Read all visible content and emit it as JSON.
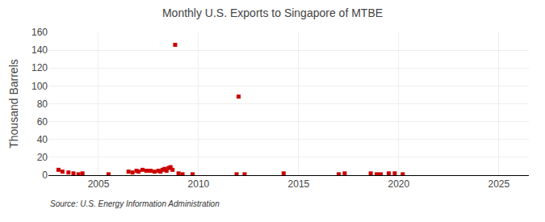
{
  "chart_data": {
    "type": "scatter",
    "title": "Monthly U.S. Exports to Singapore of MTBE",
    "ylabel": "Thousand Barrels",
    "annotations": [
      "Source: U.S. Energy Information Administration"
    ],
    "color": "#cc0000",
    "marker": "square",
    "grid": true,
    "xlim": [
      2002.5,
      2026.5
    ],
    "ylim": [
      0,
      160
    ],
    "xticks": [
      2005,
      2010,
      2015,
      2020,
      2025
    ],
    "yticks": [
      0,
      20,
      40,
      60,
      80,
      100,
      120,
      140,
      160
    ],
    "x": [
      2003.0,
      2003.2,
      2003.5,
      2003.75,
      2004.0,
      2004.2,
      2005.5,
      2006.5,
      2006.7,
      2006.9,
      2007.0,
      2007.2,
      2007.4,
      2007.6,
      2007.8,
      2008.0,
      2008.1,
      2008.2,
      2008.3,
      2008.4,
      2008.5,
      2008.6,
      2008.7,
      2008.83,
      2009.0,
      2009.2,
      2009.7,
      2011.9,
      2012.0,
      2012.3,
      2014.25,
      2017.0,
      2017.3,
      2018.6,
      2018.9,
      2019.1,
      2019.5,
      2019.8,
      2020.2
    ],
    "values": [
      6,
      4,
      3,
      2,
      1,
      2,
      1,
      4,
      3,
      5,
      4,
      6,
      5,
      5,
      4,
      5,
      4,
      6,
      7,
      5,
      8,
      9,
      6,
      146,
      2,
      1,
      1,
      1,
      88,
      1,
      2,
      1,
      2,
      2,
      1,
      1,
      2,
      2,
      1
    ]
  }
}
